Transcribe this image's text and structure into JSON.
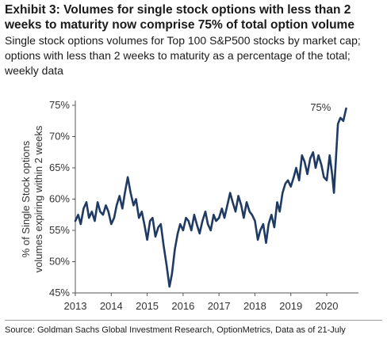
{
  "header": {
    "title": "Exhibit 3: Volumes for single stock options with less than 2 weeks to maturity now comprise 75% of total option volume",
    "subtitle": "Single stock options volumes for Top 100 S&P500 stocks by market cap; options with less than 2 weeks to maturity as a percentage of the total; weekly data"
  },
  "footer": {
    "source": "Source: Goldman Sachs Global Investment Research, OptionMetrics, Data as of 21-July"
  },
  "colors": {
    "line": "#1f3a63",
    "axis": "#555555"
  },
  "chart_data": {
    "type": "line",
    "title": "",
    "ylabel_lines": [
      "% of Single Stock options",
      "volumes expiring within 2 weeks"
    ],
    "xlabel": "",
    "xlim": [
      2013.0,
      2020.75
    ],
    "ylim": [
      45,
      75
    ],
    "x_ticks": [
      2013,
      2014,
      2015,
      2016,
      2017,
      2018,
      2019,
      2020
    ],
    "x_tick_labels": [
      "2013",
      "2014",
      "2015",
      "2016",
      "2017",
      "2018",
      "2019",
      "2020"
    ],
    "y_ticks": [
      45,
      50,
      55,
      60,
      65,
      70,
      75
    ],
    "y_tick_labels": [
      "45%",
      "50%",
      "55%",
      "60%",
      "65%",
      "70%",
      "75%"
    ],
    "grid": false,
    "annotations": [
      {
        "text": "75%",
        "x": 2020.25,
        "y": 74.5
      }
    ],
    "series": [
      {
        "x": [
          2013.0,
          2013.08,
          2013.15,
          2013.23,
          2013.31,
          2013.38,
          2013.46,
          2013.54,
          2013.62,
          2013.69,
          2013.77,
          2013.85,
          2013.92,
          2014.0,
          2014.08,
          2014.15,
          2014.23,
          2014.31,
          2014.38,
          2014.46,
          2014.54,
          2014.62,
          2014.69,
          2014.77,
          2014.85,
          2014.92,
          2015.0,
          2015.08,
          2015.15,
          2015.23,
          2015.31,
          2015.38,
          2015.46,
          2015.54,
          2015.62,
          2015.69,
          2015.77,
          2015.85,
          2015.92,
          2016.0,
          2016.08,
          2016.15,
          2016.23,
          2016.31,
          2016.38,
          2016.46,
          2016.54,
          2016.62,
          2016.69,
          2016.77,
          2016.85,
          2016.92,
          2017.0,
          2017.08,
          2017.15,
          2017.23,
          2017.31,
          2017.38,
          2017.46,
          2017.54,
          2017.62,
          2017.69,
          2017.77,
          2017.85,
          2017.92,
          2018.0,
          2018.08,
          2018.15,
          2018.23,
          2018.31,
          2018.38,
          2018.46,
          2018.54,
          2018.62,
          2018.69,
          2018.77,
          2018.85,
          2018.92,
          2019.0,
          2019.08,
          2019.15,
          2019.23,
          2019.31,
          2019.38,
          2019.46,
          2019.54,
          2019.62,
          2019.69,
          2019.77,
          2019.85,
          2019.92,
          2020.0,
          2020.08,
          2020.15,
          2020.2,
          2020.25,
          2020.31,
          2020.38,
          2020.46,
          2020.54
        ],
        "values": [
          56.5,
          57.5,
          56.0,
          58.5,
          59.5,
          57.0,
          58.0,
          56.5,
          59.5,
          58.0,
          57.5,
          59.0,
          58.0,
          56.0,
          57.0,
          59.0,
          60.5,
          58.5,
          61.0,
          63.5,
          61.0,
          59.0,
          60.0,
          57.0,
          58.0,
          56.0,
          53.5,
          56.5,
          57.0,
          54.0,
          55.5,
          56.0,
          52.5,
          49.5,
          46.0,
          48.0,
          52.0,
          54.5,
          56.0,
          55.0,
          57.0,
          56.5,
          55.0,
          57.5,
          56.0,
          54.5,
          56.5,
          58.0,
          56.0,
          55.0,
          57.5,
          56.5,
          57.0,
          58.5,
          57.0,
          59.0,
          61.0,
          59.5,
          58.0,
          60.5,
          59.0,
          57.0,
          59.5,
          58.0,
          57.5,
          56.5,
          53.5,
          55.0,
          56.0,
          53.0,
          56.0,
          57.5,
          55.5,
          59.5,
          58.0,
          61.0,
          62.5,
          63.0,
          62.0,
          63.5,
          65.0,
          63.0,
          67.0,
          66.0,
          64.0,
          66.5,
          67.5,
          65.0,
          67.0,
          65.5,
          63.5,
          63.0,
          67.0,
          64.0,
          61.0,
          66.0,
          72.0,
          73.0,
          72.5,
          74.5
        ]
      }
    ]
  }
}
